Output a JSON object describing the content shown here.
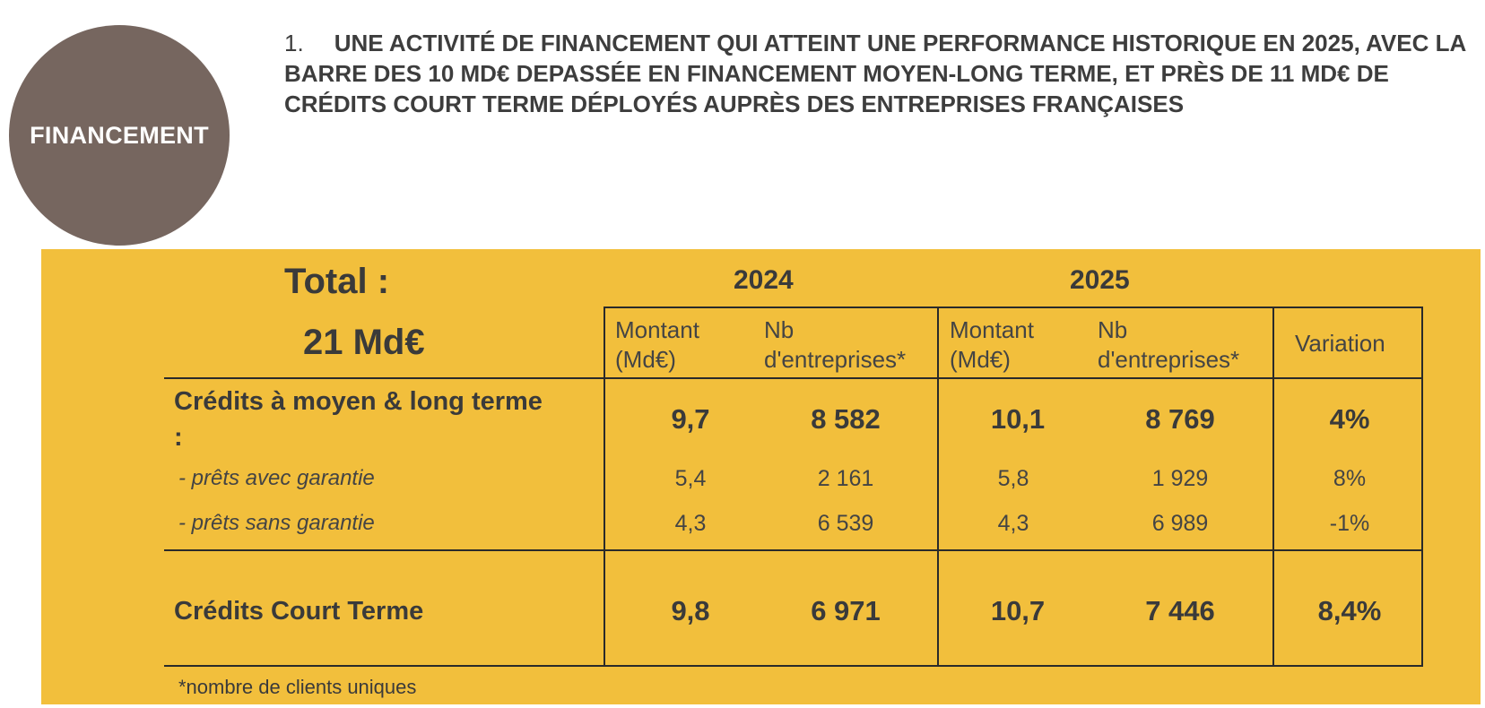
{
  "badge": {
    "label": "FINANCEMENT"
  },
  "heading": {
    "number": "1.",
    "text": "UNE ACTIVITÉ DE FINANCEMENT QUI ATTEINT UNE PERFORMANCE HISTORIQUE EN 2025, AVEC LA BARRE DES 10 MD€ DEPASSÉE EN FINANCEMENT MOYEN-LONG TERME, ET PRÈS DE 11 MD€ DE CRÉDITS COURT TERME DÉPLOYÉS AUPRÈS DES ENTREPRISES FRANÇAISES"
  },
  "table": {
    "total_label": "Total :",
    "total_value": "21 Md€",
    "years": [
      "2024",
      "2025"
    ],
    "col_headers": {
      "montant": "Montant (Md€)",
      "nb": "Nb d'entreprises*",
      "variation": "Variation"
    },
    "rows": [
      {
        "label": "Crédits à moyen & long terme :",
        "m2024": "9,7",
        "n2024": "8 582",
        "m2025": "10,1",
        "n2025": "8 769",
        "var": "4%"
      },
      {
        "label": "- prêts avec garantie",
        "m2024": "5,4",
        "n2024": "2 161",
        "m2025": "5,8",
        "n2025": "1 929",
        "var": "8%"
      },
      {
        "label": "- prêts sans garantie",
        "m2024": "4,3",
        "n2024": "6 539",
        "m2025": "4,3",
        "n2025": "6 989",
        "var": "-1%"
      },
      {
        "label": "Crédits Court Terme",
        "m2024": "9,8",
        "n2024": "6 971",
        "m2025": "10,7",
        "n2025": "7 446",
        "var": "8,4%"
      }
    ],
    "footnote": "*nombre de clients uniques"
  }
}
